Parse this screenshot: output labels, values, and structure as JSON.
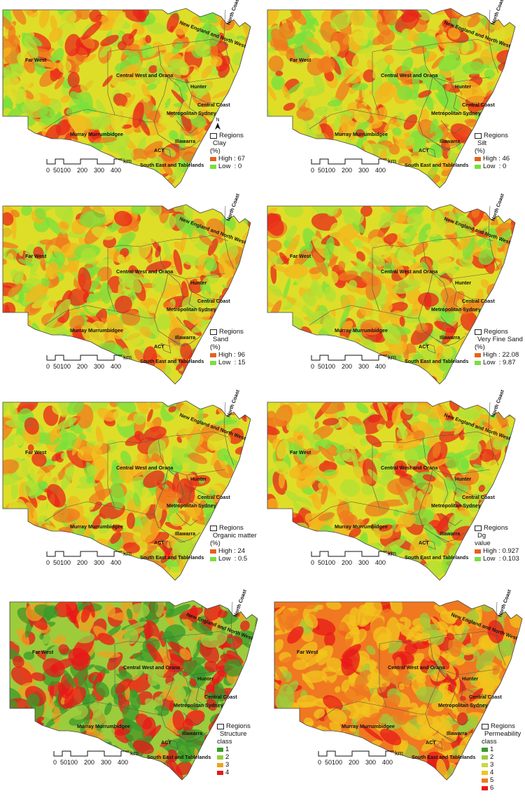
{
  "regions": {
    "north_coast": "North Coast",
    "new_england": "New England and North West",
    "far_west": "Far West",
    "central_west": "Central West and Orana",
    "hunter": "Hunter",
    "central_coast": "Central Coast",
    "metro_sydney": "Metropolitan Sydney",
    "murray": "Murray Murrumbidgee",
    "illawarra": "Illawarra",
    "act": "ACT",
    "south_east": "South East and Tablelands"
  },
  "scale": {
    "ticks": [
      "0",
      "50",
      "100",
      "200",
      "300",
      "400"
    ],
    "unit": "km"
  },
  "north_label": "N",
  "panels": [
    {
      "id": "clay",
      "legend": {
        "regions_label": "Regions",
        "title_lines": [
          "Clay",
          "(%)"
        ],
        "entries": [
          {
            "label": "High : 67",
            "color": "#e8601c"
          },
          {
            "label": "Low  : 0",
            "color": "#78e03c"
          }
        ]
      },
      "palette": [
        "#e8241a",
        "#ef7a1e",
        "#f4b41e",
        "#dede28",
        "#b0e034",
        "#78e03c"
      ]
    },
    {
      "id": "silt",
      "legend": {
        "regions_label": "Regions",
        "title_lines": [
          "Silt",
          "(%)"
        ],
        "entries": [
          {
            "label": "High : 46",
            "color": "#e8601c"
          },
          {
            "label": "Low  : 0",
            "color": "#78e03c"
          }
        ]
      },
      "palette": [
        "#e8241a",
        "#ef7a1e",
        "#f4b41e",
        "#dede28",
        "#b0e034",
        "#78e03c"
      ]
    },
    {
      "id": "sand",
      "legend": {
        "regions_label": "Regions",
        "title_lines": [
          "Sand",
          "(%)"
        ],
        "entries": [
          {
            "label": "High : 96",
            "color": "#e8601c"
          },
          {
            "label": "Low  : 15",
            "color": "#78e03c"
          }
        ]
      },
      "palette": [
        "#e8241a",
        "#ef7a1e",
        "#f4b41e",
        "#dede28",
        "#b0e034",
        "#78e03c"
      ]
    },
    {
      "id": "vfsand",
      "legend": {
        "regions_label": "Regions",
        "title_lines": [
          "Very Fine Sand",
          "(%)"
        ],
        "entries": [
          {
            "label": "High : 22.08",
            "color": "#e8601c"
          },
          {
            "label": "Low  : 9.87",
            "color": "#78e03c"
          }
        ]
      },
      "palette": [
        "#e8241a",
        "#ef7a1e",
        "#f4b41e",
        "#dede28",
        "#b0e034",
        "#78e03c"
      ]
    },
    {
      "id": "organic",
      "legend": {
        "regions_label": "Regions",
        "title_lines": [
          "Organic matter",
          "(%)"
        ],
        "entries": [
          {
            "label": "High : 24",
            "color": "#e8601c"
          },
          {
            "label": "Low  : 0.5",
            "color": "#78e03c"
          }
        ]
      },
      "palette": [
        "#e8241a",
        "#ef7a1e",
        "#f4b41e",
        "#dede28",
        "#b0e034",
        "#78e03c"
      ]
    },
    {
      "id": "dg",
      "legend": {
        "regions_label": "Regions",
        "title_lines": [
          "Dg",
          "value"
        ],
        "entries": [
          {
            "label": "High : 0.927",
            "color": "#e8601c"
          },
          {
            "label": "Low  : 0.103",
            "color": "#78e03c"
          }
        ]
      },
      "palette": [
        "#e8241a",
        "#ef7a1e",
        "#f4b41e",
        "#dede28",
        "#b0e034",
        "#78e03c"
      ]
    },
    {
      "id": "structure",
      "legend": {
        "regions_label": "Regions",
        "title_lines": [
          "Structure",
          "class"
        ],
        "entries": [
          {
            "label": "1",
            "color": "#3a9a2a"
          },
          {
            "label": "2",
            "color": "#9ccc3c"
          },
          {
            "label": "3",
            "color": "#f0a020"
          },
          {
            "label": "4",
            "color": "#e81818"
          }
        ]
      },
      "palette": [
        "#e81818",
        "#3a9a2a",
        "#f0a020",
        "#9ccc3c",
        "#e81818",
        "#3a9a2a"
      ]
    },
    {
      "id": "permeability",
      "legend": {
        "regions_label": "Regions",
        "title_lines": [
          "Permeability",
          "class"
        ],
        "entries": [
          {
            "label": "1",
            "color": "#3a9a2a"
          },
          {
            "label": "2",
            "color": "#9ccc3c"
          },
          {
            "label": "3",
            "color": "#c8d846"
          },
          {
            "label": "4",
            "color": "#f2c41e"
          },
          {
            "label": "5",
            "color": "#f07820"
          },
          {
            "label": "6",
            "color": "#e81818"
          }
        ]
      },
      "palette": [
        "#f2c41e",
        "#f2c41e",
        "#e81818",
        "#f07820",
        "#9ccc3c",
        "#f2c41e"
      ]
    }
  ]
}
